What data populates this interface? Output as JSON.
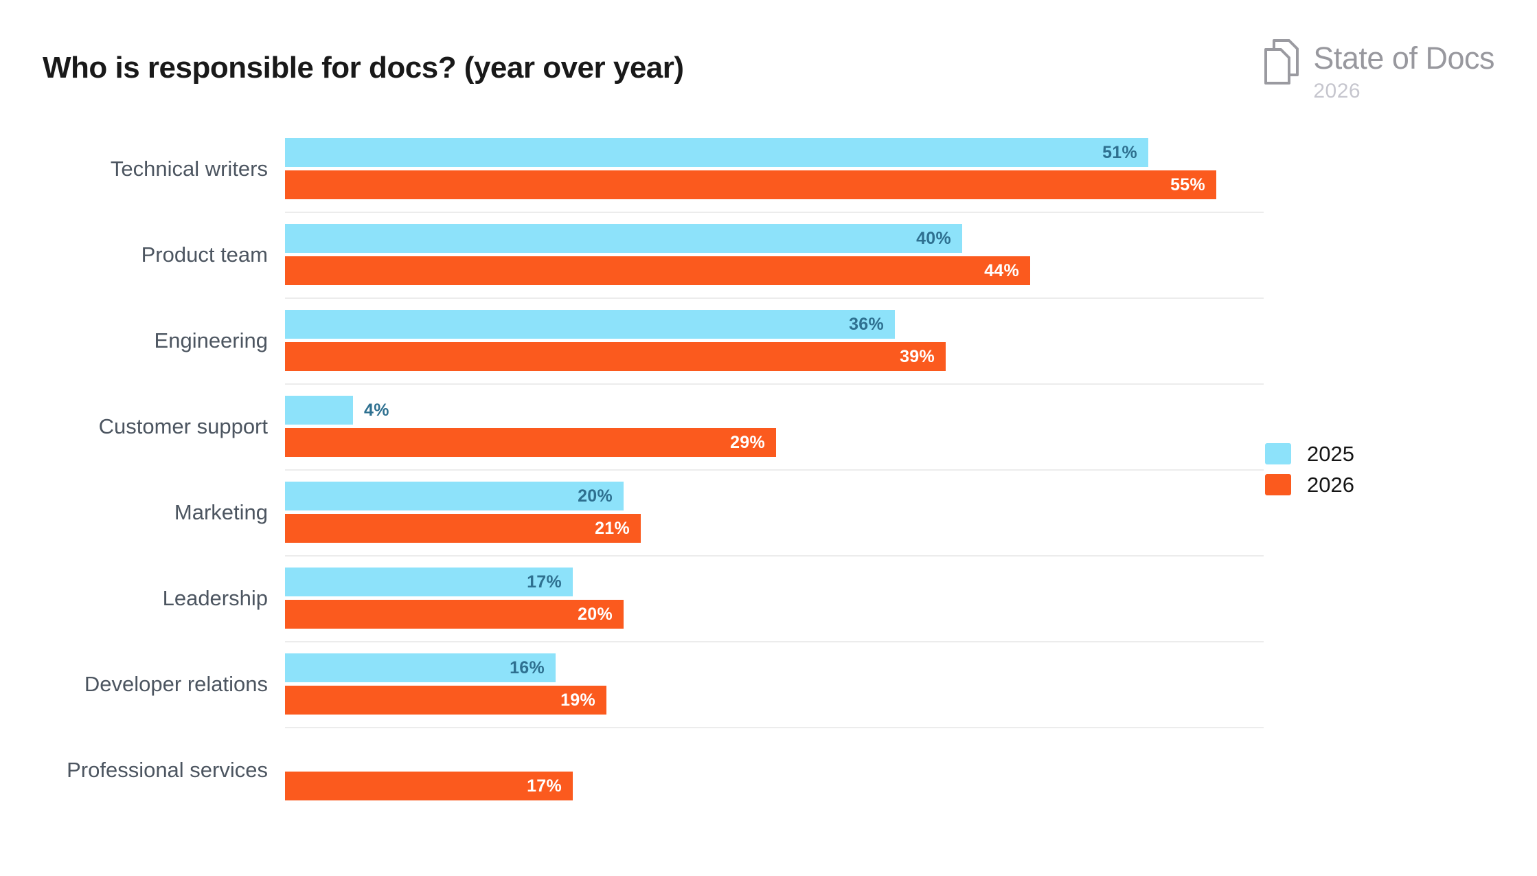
{
  "logo": {
    "name": "State of Docs",
    "year": "2026",
    "icon": "documents-icon"
  },
  "chart_data": {
    "type": "bar",
    "orientation": "horizontal",
    "title": "Who is responsible for docs? (year over year)",
    "categories": [
      "Technical writers",
      "Product team",
      "Engineering",
      "Customer support",
      "Marketing",
      "Leadership",
      "Developer relations",
      "Professional services"
    ],
    "series": [
      {
        "name": "2025",
        "color": "#8DE2FA",
        "label_color": "#2E7090",
        "values": [
          51,
          40,
          36,
          4,
          20,
          17,
          16,
          null
        ]
      },
      {
        "name": "2026",
        "color": "#FB5A1E",
        "label_color": "#FFFFFF",
        "values": [
          55,
          44,
          39,
          29,
          21,
          20,
          19,
          17
        ]
      }
    ],
    "value_suffix": "%",
    "value_range": [
      0,
      55
    ],
    "value_axis_visible": false,
    "grid": false,
    "legend_position": "middle-right"
  },
  "colors": {
    "title": "#191919",
    "category_label": "#4C5560",
    "legend_text": "#151515",
    "separator": "#ECECEC",
    "logo_text": "#98989E",
    "logo_year": "#C6C6CE"
  }
}
